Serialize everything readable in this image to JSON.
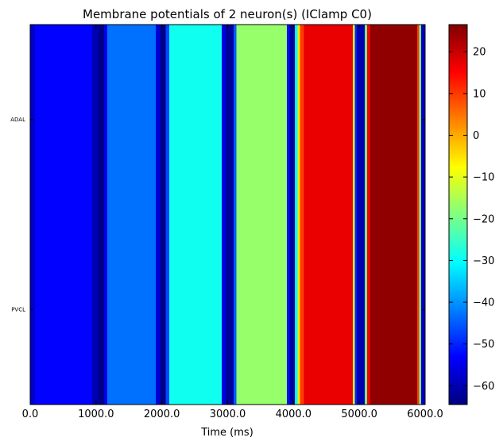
{
  "chart_data": {
    "type": "heatmap",
    "title": "Membrane potentials of 2 neuron(s) (IClamp C0)",
    "xlabel": "Time (ms)",
    "ylabel": "",
    "xlim": [
      0,
      6000
    ],
    "x_ticks": [
      "0.0",
      "1000.0",
      "2000.0",
      "3000.0",
      "4000.0",
      "5000.0",
      "6000.0"
    ],
    "x_tick_values": [
      0,
      1000,
      2000,
      3000,
      4000,
      5000,
      6000
    ],
    "rows": [
      "ADAL",
      "PVCL"
    ],
    "colorbar": {
      "colormap": "jet",
      "vmin": -64.5,
      "vmax": 26.5,
      "ticks": [
        "−60",
        "−50",
        "−40",
        "−30",
        "−20",
        "−10",
        "0",
        "10",
        "20"
      ],
      "tick_values": [
        -60,
        -50,
        -40,
        -30,
        -20,
        -10,
        0,
        10,
        20
      ]
    },
    "segments_mV": [
      {
        "t_start": 0,
        "t_end": 70,
        "v": -58
      },
      {
        "t_start": 70,
        "t_end": 940,
        "v": -53
      },
      {
        "t_start": 940,
        "t_end": 1040,
        "v": -60
      },
      {
        "t_start": 1040,
        "t_end": 1120,
        "v": -64
      },
      {
        "t_start": 1120,
        "t_end": 1170,
        "v": -55
      },
      {
        "t_start": 1170,
        "t_end": 1910,
        "v": -43
      },
      {
        "t_start": 1910,
        "t_end": 1980,
        "v": -57
      },
      {
        "t_start": 1980,
        "t_end": 2060,
        "v": -64
      },
      {
        "t_start": 2060,
        "t_end": 2110,
        "v": -47
      },
      {
        "t_start": 2110,
        "t_end": 2910,
        "v": -29
      },
      {
        "t_start": 2910,
        "t_end": 2970,
        "v": -56
      },
      {
        "t_start": 2970,
        "t_end": 3090,
        "v": -62
      },
      {
        "t_start": 3090,
        "t_end": 3130,
        "v": -45
      },
      {
        "t_start": 3130,
        "t_end": 3900,
        "v": -17
      },
      {
        "t_start": 3900,
        "t_end": 3940,
        "v": -52
      },
      {
        "t_start": 3940,
        "t_end": 4020,
        "v": -62
      },
      {
        "t_start": 4020,
        "t_end": 4060,
        "v": -30
      },
      {
        "t_start": 4060,
        "t_end": 4100,
        "v": -5
      },
      {
        "t_start": 4100,
        "t_end": 4160,
        "v": 10
      },
      {
        "t_start": 4160,
        "t_end": 4900,
        "v": 17
      },
      {
        "t_start": 4900,
        "t_end": 4930,
        "v": -10
      },
      {
        "t_start": 4930,
        "t_end": 4960,
        "v": -50
      },
      {
        "t_start": 4960,
        "t_end": 5080,
        "v": -60
      },
      {
        "t_start": 5080,
        "t_end": 5120,
        "v": -20
      },
      {
        "t_start": 5120,
        "t_end": 5160,
        "v": 15
      },
      {
        "t_start": 5160,
        "t_end": 5880,
        "v": 25
      },
      {
        "t_start": 5880,
        "t_end": 5910,
        "v": 10
      },
      {
        "t_start": 5910,
        "t_end": 5940,
        "v": -20
      },
      {
        "t_start": 5940,
        "t_end": 6000,
        "v": -58
      }
    ]
  }
}
